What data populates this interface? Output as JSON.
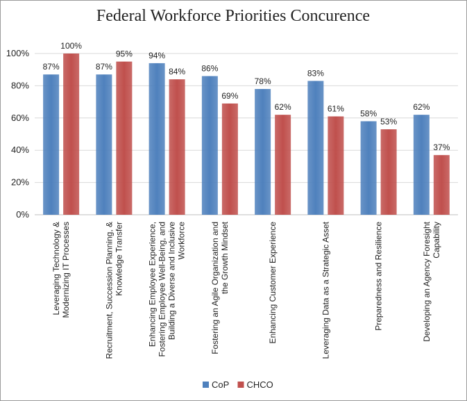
{
  "chart_data": {
    "type": "bar",
    "title": "Federal Workforce Priorities Concurence",
    "categories": [
      [
        "Leveraging Technology &",
        "Modernizing IT Processes"
      ],
      [
        "Recruitment, Succession Planning, &",
        "Knowledge Transfer"
      ],
      [
        "Enhancing Employee Experience,",
        "Fostering Employee Well-Being, and",
        "Building a Diverse and Inclusive",
        "Workforce"
      ],
      [
        "Fostering an Agile Organization and",
        "the Growth Mindset"
      ],
      [
        "Enhancing Customer Experience"
      ],
      [
        "Leveraging Data as a Strategic Asset"
      ],
      [
        "Preparedness and Resilience"
      ],
      [
        "Developing an Agency Foresight",
        "Capability"
      ]
    ],
    "series": [
      {
        "name": "CoP",
        "color": "#4f81bd",
        "values": [
          87,
          87,
          94,
          86,
          78,
          83,
          58,
          62
        ]
      },
      {
        "name": "CHCO",
        "color": "#c0504d",
        "values": [
          100,
          95,
          84,
          69,
          62,
          61,
          53,
          37
        ]
      }
    ],
    "ylim": [
      0,
      100
    ],
    "yticks": [
      0,
      20,
      40,
      60,
      80,
      100
    ],
    "ytick_labels": [
      "0%",
      "20%",
      "40%",
      "60%",
      "80%",
      "100%"
    ],
    "value_suffix": "%",
    "grid": true,
    "legend_position": "bottom"
  }
}
